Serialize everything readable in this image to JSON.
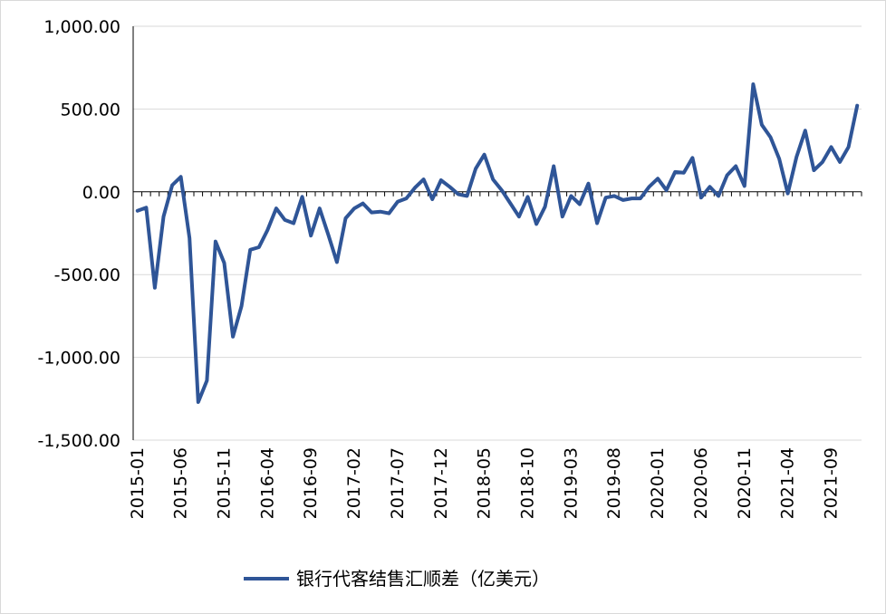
{
  "chart_data": {
    "type": "line",
    "title": "",
    "xlabel": "",
    "ylabel": "",
    "ylim": [
      -1500,
      1000
    ],
    "y_ticks": [
      1000,
      500,
      0,
      -500,
      -1000,
      -1500
    ],
    "y_tick_labels": [
      "1,000.00",
      "500.00",
      "0.00",
      "-500.00",
      "-1,000.00",
      "-1,500.00"
    ],
    "x_tick_labels": [
      "2015-01",
      "2015-06",
      "2015-11",
      "2016-04",
      "2016-09",
      "2017-02",
      "2017-07",
      "2017-12",
      "2018-05",
      "2018-10",
      "2019-03",
      "2019-08",
      "2020-01",
      "2020-06",
      "2020-11",
      "2021-04",
      "2021-09"
    ],
    "grid": true,
    "legend_position": "bottom",
    "series": [
      {
        "name": "银行代客结售汇顺差（亿美元）",
        "color": "#2f5597",
        "x": [
          "2015-01",
          "2015-02",
          "2015-03",
          "2015-04",
          "2015-05",
          "2015-06",
          "2015-07",
          "2015-08",
          "2015-09",
          "2015-10",
          "2015-11",
          "2015-12",
          "2016-01",
          "2016-02",
          "2016-03",
          "2016-04",
          "2016-05",
          "2016-06",
          "2016-07",
          "2016-08",
          "2016-09",
          "2016-10",
          "2016-11",
          "2016-12",
          "2017-01",
          "2017-02",
          "2017-03",
          "2017-04",
          "2017-05",
          "2017-06",
          "2017-07",
          "2017-08",
          "2017-09",
          "2017-10",
          "2017-11",
          "2017-12",
          "2018-01",
          "2018-02",
          "2018-03",
          "2018-04",
          "2018-05",
          "2018-06",
          "2018-07",
          "2018-08",
          "2018-09",
          "2018-10",
          "2018-11",
          "2018-12",
          "2019-01",
          "2019-02",
          "2019-03",
          "2019-04",
          "2019-05",
          "2019-06",
          "2019-07",
          "2019-08",
          "2019-09",
          "2019-10",
          "2019-11",
          "2019-12",
          "2020-01",
          "2020-02",
          "2020-03",
          "2020-04",
          "2020-05",
          "2020-06",
          "2020-07",
          "2020-08",
          "2020-09",
          "2020-10",
          "2020-11",
          "2020-12",
          "2021-01",
          "2021-02",
          "2021-03",
          "2021-04",
          "2021-05",
          "2021-06",
          "2021-07",
          "2021-08",
          "2021-09",
          "2021-10",
          "2021-11",
          "2021-12"
        ],
        "values": [
          -115,
          -95,
          -580,
          -150,
          40,
          90,
          -280,
          -1270,
          -1140,
          -300,
          -430,
          -875,
          -690,
          -350,
          -335,
          -230,
          -100,
          -170,
          -190,
          -30,
          -265,
          -100,
          -260,
          -425,
          -160,
          -100,
          -70,
          -125,
          -120,
          -130,
          -60,
          -40,
          25,
          75,
          -45,
          70,
          30,
          -15,
          -25,
          140,
          225,
          75,
          10,
          -70,
          -150,
          -30,
          -195,
          -90,
          155,
          -150,
          -25,
          -75,
          50,
          -190,
          -35,
          -25,
          -50,
          -40,
          -40,
          30,
          80,
          10,
          120,
          115,
          205,
          -35,
          30,
          -25,
          100,
          155,
          35,
          650,
          405,
          330,
          200,
          -10,
          210,
          370,
          130,
          180,
          270,
          180,
          270,
          520
        ]
      }
    ]
  }
}
